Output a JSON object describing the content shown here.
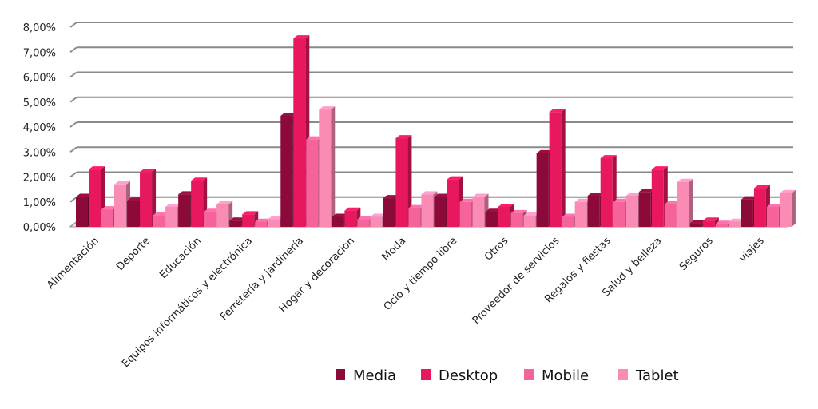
{
  "chart_data": {
    "type": "bar",
    "categories": [
      "Alimentación",
      "Deporte",
      "Educación",
      "Equipos informáticos y electrónica",
      "Ferretería y jardinería",
      "Hogar y decoración",
      "Moda",
      "Ocio y tiempo libre",
      "Otros",
      "Proveedor de servicios",
      "Regalos y fiestas",
      "Salud y belleza",
      "Seguros",
      "viajes"
    ],
    "series": [
      {
        "name": "Media",
        "color": "#8b0a3a",
        "values": [
          1.2,
          1.05,
          1.3,
          0.25,
          4.45,
          0.4,
          1.15,
          1.2,
          0.6,
          2.95,
          1.25,
          1.4,
          0.15,
          1.1
        ]
      },
      {
        "name": "Desktop",
        "color": "#e8185e",
        "values": [
          2.3,
          2.2,
          1.85,
          0.5,
          7.55,
          0.65,
          3.55,
          1.9,
          0.8,
          4.6,
          2.75,
          2.3,
          0.25,
          1.55
        ]
      },
      {
        "name": "Mobile",
        "color": "#f5639a",
        "values": [
          0.7,
          0.45,
          0.6,
          0.2,
          3.5,
          0.3,
          0.75,
          1.0,
          0.55,
          0.4,
          1.0,
          0.9,
          0.12,
          0.8
        ]
      },
      {
        "name": "Tablet",
        "color": "#f98bb4",
        "values": [
          1.7,
          0.8,
          0.9,
          0.3,
          4.7,
          0.4,
          1.3,
          1.2,
          0.45,
          1.0,
          1.25,
          1.8,
          0.2,
          1.35
        ]
      }
    ],
    "yticks": [
      "0,00%",
      "1,00%",
      "2,00%",
      "3,00%",
      "4,00%",
      "5,00%",
      "6,00%",
      "7,00%",
      "8,00%"
    ],
    "ylim": [
      0,
      8
    ],
    "grid": true,
    "legend": "bottom",
    "style": "3d-clustered-column"
  }
}
